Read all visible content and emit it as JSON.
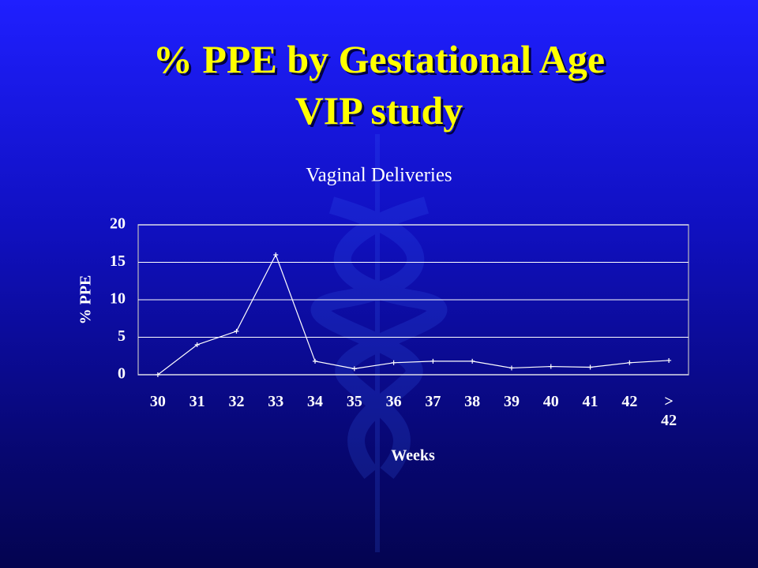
{
  "slide": {
    "title_lines": [
      "% PPE by Gestational Age",
      "VIP study"
    ]
  },
  "chart_data": {
    "type": "line",
    "title": "Vaginal Deliveries",
    "x_label": "Weeks",
    "y_label": "% PPE",
    "categories": [
      "30",
      "31",
      "32",
      "33",
      "34",
      "35",
      "36",
      "37",
      "38",
      "39",
      "40",
      "41",
      "42",
      "> 42"
    ],
    "values": [
      0,
      4,
      5.8,
      16,
      1.8,
      0.8,
      1.6,
      1.8,
      1.8,
      0.9,
      1.1,
      1.0,
      1.6,
      1.9
    ],
    "color": "#ffffff",
    "ylim": [
      0,
      20
    ],
    "yticks": [
      0,
      5,
      10,
      15,
      20
    ],
    "grid": true
  }
}
